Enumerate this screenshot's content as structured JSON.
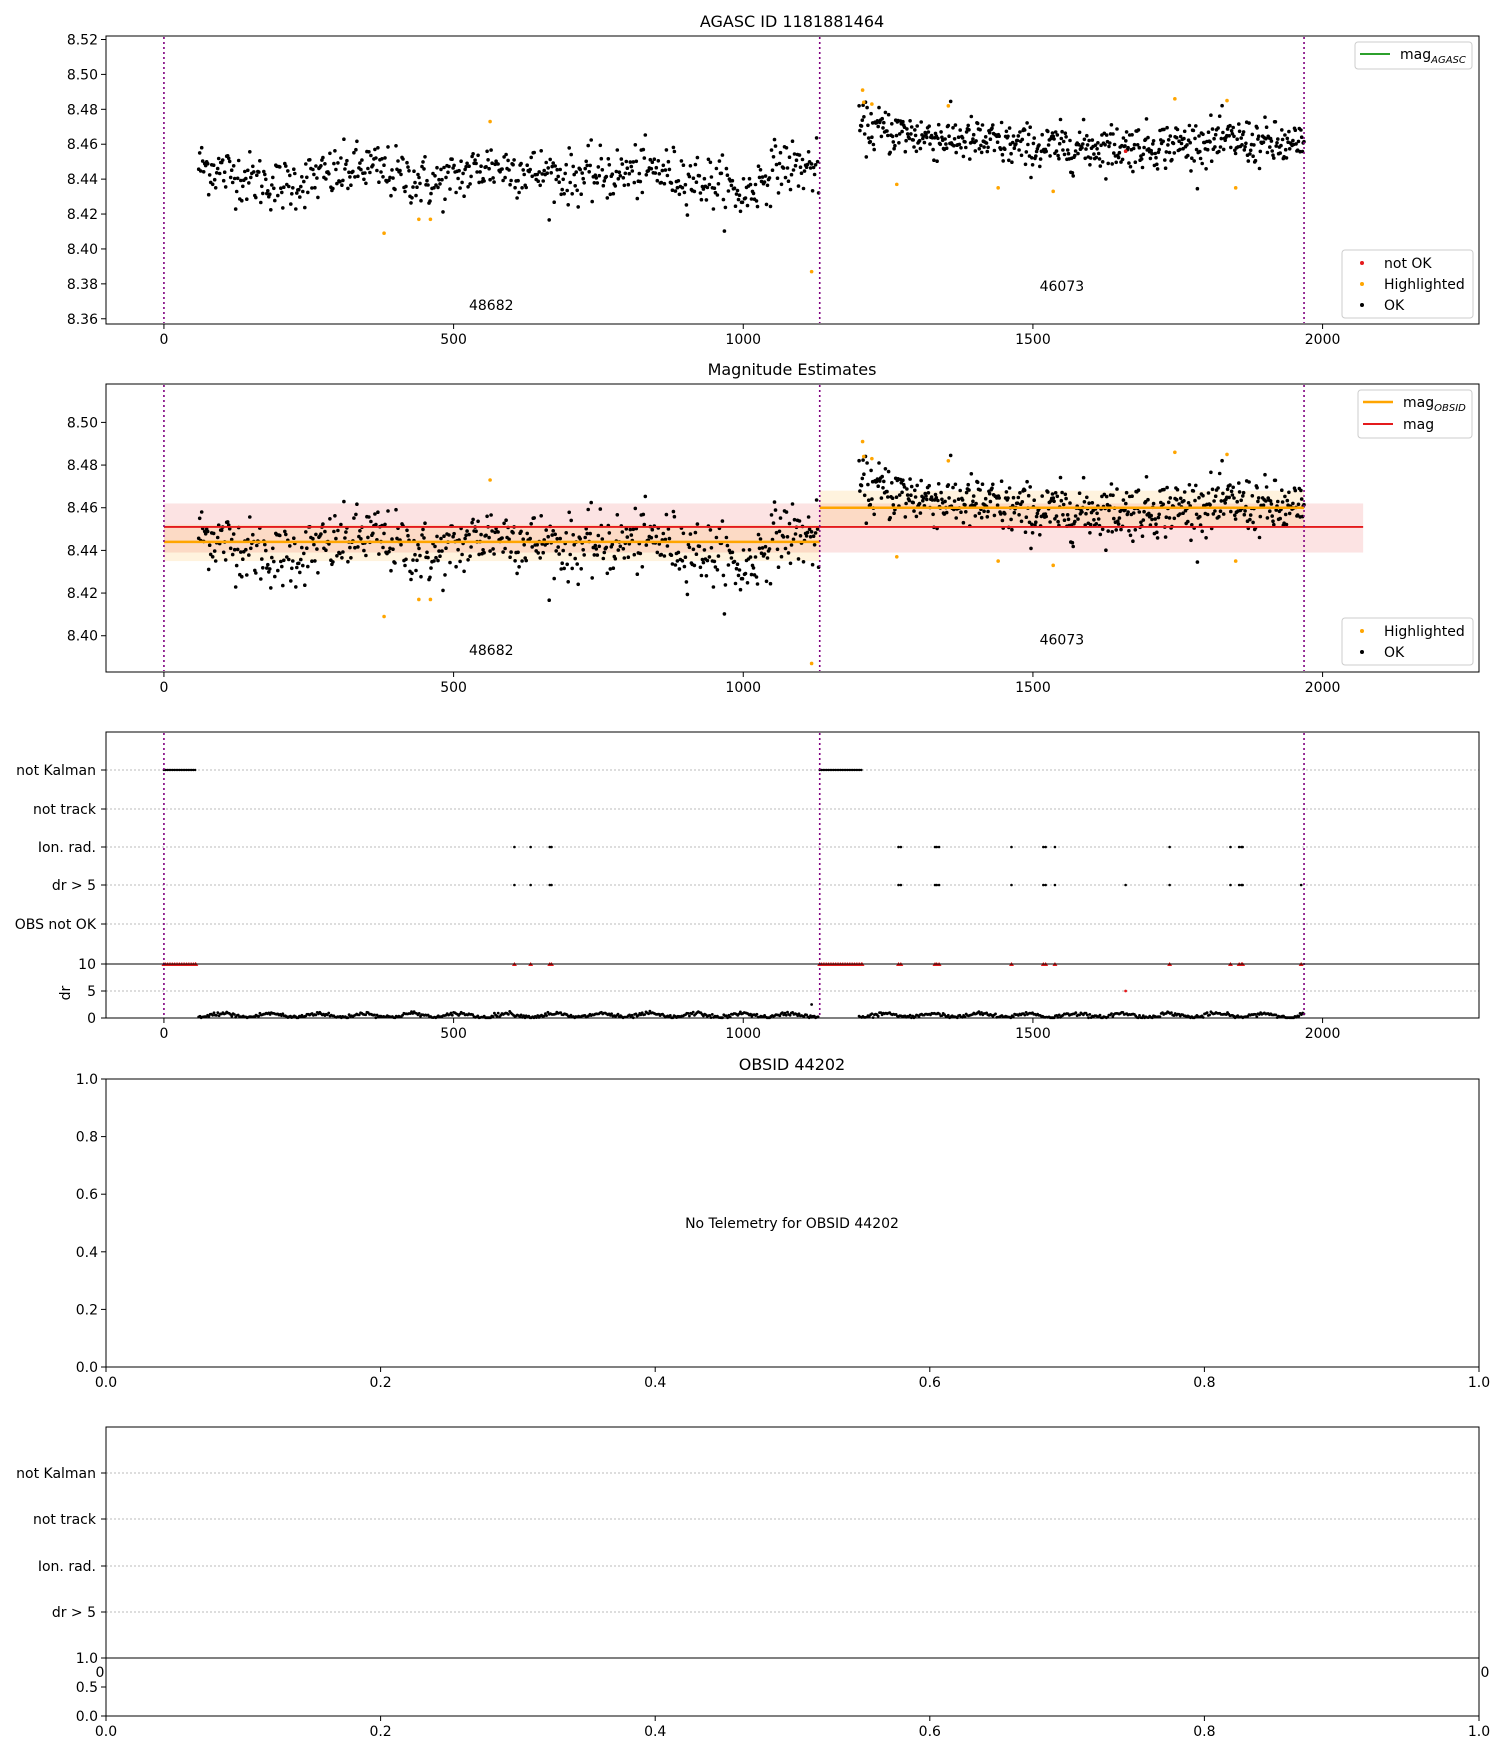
{
  "chart_data": [
    {
      "id": "p1",
      "type": "scatter",
      "title": "AGASC ID 1181881464",
      "xlim": [
        -100,
        2270
      ],
      "ylim": [
        8.357,
        8.522
      ],
      "x_ticks": [
        0,
        500,
        1000,
        1500,
        2000
      ],
      "y_ticks": [
        8.36,
        8.38,
        8.4,
        8.42,
        8.44,
        8.46,
        8.48,
        8.5,
        8.52
      ],
      "y_tick_labels": [
        "8.36",
        "8.38",
        "8.40",
        "8.42",
        "8.44",
        "8.46",
        "8.48",
        "8.50",
        "8.52"
      ],
      "grid": false,
      "obs_boundaries": [
        0,
        1132,
        1968
      ],
      "obsids": [
        {
          "label": "48682",
          "x": 565,
          "y": 8.365
        },
        {
          "label": "46073",
          "x": 1550,
          "y": 8.376
        }
      ],
      "line_legend": {
        "placement": "top-right",
        "entries": [
          {
            "name": "mag",
            "sub": "AGASC",
            "color": "#2ca02c"
          }
        ]
      },
      "point_legend": {
        "placement": "bottom-right",
        "entries": [
          {
            "name": "not OK",
            "color": "#e41a1c"
          },
          {
            "name": "Highlighted",
            "color": "#ffa500"
          },
          {
            "name": "OK",
            "color": "#000000"
          }
        ]
      },
      "series": [
        {
          "name": "OK",
          "color": "#000000",
          "segments": [
            {
              "x0": 60,
              "x1": 1130,
              "n": 620,
              "means": [
                [
                  60,
                  8.448
                ],
                [
                  200,
                  8.436
                ],
                [
                  350,
                  8.447
                ],
                [
                  470,
                  8.437
                ],
                [
                  560,
                  8.448
                ],
                [
                  700,
                  8.441
                ],
                [
                  850,
                  8.445
                ],
                [
                  960,
                  8.437
                ],
                [
                  1000,
                  8.43
                ],
                [
                  1060,
                  8.448
                ],
                [
                  1130,
                  8.446
                ]
              ],
              "sd": 0.0075
            },
            {
              "x0": 1200,
              "x1": 1968,
              "n": 560,
              "means": [
                [
                  1200,
                  8.47
                ],
                [
                  1300,
                  8.465
                ],
                [
                  1400,
                  8.462
                ],
                [
                  1500,
                  8.458
                ],
                [
                  1700,
                  8.459
                ],
                [
                  1850,
                  8.462
                ],
                [
                  1968,
                  8.458
                ]
              ],
              "sd": 0.0065
            }
          ]
        },
        {
          "name": "Highlighted",
          "color": "#ffa500",
          "points": [
            [
              380,
              8.409
            ],
            [
              440,
              8.417
            ],
            [
              460,
              8.417
            ],
            [
              563,
              8.473
            ],
            [
              1118,
              8.387
            ],
            [
              1206,
              8.491
            ],
            [
              1208,
              8.484
            ],
            [
              1222,
              8.483
            ],
            [
              1265,
              8.437
            ],
            [
              1354,
              8.482
            ],
            [
              1440,
              8.435
            ],
            [
              1535,
              8.433
            ],
            [
              1745,
              8.486
            ],
            [
              1835,
              8.485
            ],
            [
              1850,
              8.435
            ]
          ]
        },
        {
          "name": "not OK",
          "color": "#e41a1c",
          "points": [
            [
              1660,
              8.456
            ]
          ]
        }
      ]
    },
    {
      "id": "p2",
      "type": "scatter",
      "title": "Magnitude Estimates",
      "xlim": [
        -100,
        2270
      ],
      "ylim": [
        8.383,
        8.518
      ],
      "x_ticks": [
        0,
        500,
        1000,
        1500,
        2000
      ],
      "y_ticks": [
        8.4,
        8.42,
        8.44,
        8.46,
        8.48,
        8.5
      ],
      "y_tick_labels": [
        "8.40",
        "8.42",
        "8.44",
        "8.46",
        "8.48",
        "8.50"
      ],
      "grid": false,
      "obs_boundaries": [
        0,
        1132,
        1968
      ],
      "obsids": [
        {
          "label": "48682",
          "x": 565,
          "y": 8.391
        },
        {
          "label": "46073",
          "x": 1550,
          "y": 8.396
        }
      ],
      "line_legend": {
        "placement": "top-right",
        "entries": [
          {
            "name": "mag",
            "sub": "OBSID",
            "color": "#ffa500"
          },
          {
            "name": "mag",
            "sub": "",
            "color": "#e41a1c"
          }
        ]
      },
      "point_legend": {
        "placement": "bottom-right",
        "entries": [
          {
            "name": "Highlighted",
            "color": "#ffa500"
          },
          {
            "name": "OK",
            "color": "#000000"
          }
        ]
      },
      "mag": {
        "value": 8.451,
        "band": [
          8.439,
          8.462
        ],
        "x": [
          0,
          2070
        ],
        "color": "#e41a1c"
      },
      "mag_obsid": [
        {
          "x": [
            0,
            1132
          ],
          "value": 8.444,
          "band": [
            8.435,
            8.452
          ]
        },
        {
          "x": [
            1132,
            1968
          ],
          "value": 8.46,
          "band": [
            8.451,
            8.468
          ]
        }
      ],
      "series_ref": "p1"
    },
    {
      "id": "p3",
      "type": "scatter",
      "xlim": [
        -100,
        2270
      ],
      "x_ticks": [
        0,
        500,
        1000,
        1500,
        2000
      ],
      "flag_labels": [
        "not Kalman",
        "not track",
        "Ion. rad.",
        "dr > 5",
        "OBS not OK"
      ],
      "obs_boundaries": [
        0,
        1132,
        1968
      ],
      "flags": {
        "not Kalman": [
          [
            0,
            55
          ],
          [
            1132,
            1205
          ]
        ],
        "not track": [],
        "Ion. rad.": [
          605,
          633,
          666,
          669,
          1268,
          1272,
          1331,
          1334,
          1338,
          1463,
          1518,
          1522,
          1538,
          1736,
          1841,
          1856,
          1860,
          1862
        ],
        "dr > 5": [
          605,
          633,
          666,
          669,
          1268,
          1272,
          1331,
          1334,
          1338,
          1463,
          1518,
          1522,
          1538,
          1660,
          1736,
          1841,
          1856,
          1860,
          1862,
          1963
        ],
        "OBS not OK": []
      },
      "dr": {
        "ylabel": "dr",
        "ylim": [
          0,
          10
        ],
        "y_ticks": [
          0,
          5,
          10
        ],
        "y_tick_labels": [
          "0",
          "5",
          "10"
        ],
        "segments": [
          [
            60,
            1130
          ],
          [
            1200,
            1968
          ]
        ],
        "outliers": [
          [
            1118,
            2.5
          ],
          [
            1660,
            5.0
          ]
        ],
        "clipped_x": [
          0,
          55,
          605,
          633,
          666,
          669,
          1132,
          1205,
          1268,
          1272,
          1331,
          1334,
          1338,
          1463,
          1518,
          1522,
          1538,
          1736,
          1841,
          1856,
          1860,
          1862,
          1963
        ]
      }
    },
    {
      "id": "p4",
      "type": "scatter",
      "title": "OBSID 44202",
      "xlim": [
        0,
        1
      ],
      "ylim": [
        0,
        1
      ],
      "x_ticks": [
        0,
        0.2,
        0.4,
        0.6,
        0.8,
        1.0
      ],
      "x_tick_labels": [
        "0.0",
        "0.2",
        "0.4",
        "0.6",
        "0.8",
        "1.0"
      ],
      "y_ticks": [
        0,
        0.2,
        0.4,
        0.6,
        0.8,
        1.0
      ],
      "y_tick_labels": [
        "0.0",
        "0.2",
        "0.4",
        "0.6",
        "0.8",
        "1.0"
      ],
      "annotation": "No Telemetry for OBSID 44202"
    },
    {
      "id": "p5",
      "type": "scatter",
      "flag_labels": [
        "not Kalman",
        "not track",
        "Ion. rad.",
        "dr > 5"
      ],
      "x_ticks": [
        0,
        0.2,
        0.4,
        0.6,
        0.8,
        1.0
      ],
      "x_tick_labels": [
        "0.0",
        "0.2",
        "0.4",
        "0.6",
        "0.8",
        "1.0"
      ],
      "y_ticks": [
        0,
        0.5,
        1.0
      ],
      "y_tick_labels": [
        "0.0",
        "0.5",
        "1.0"
      ],
      "clipped_tick_labels": [
        "0",
        "0"
      ]
    }
  ]
}
